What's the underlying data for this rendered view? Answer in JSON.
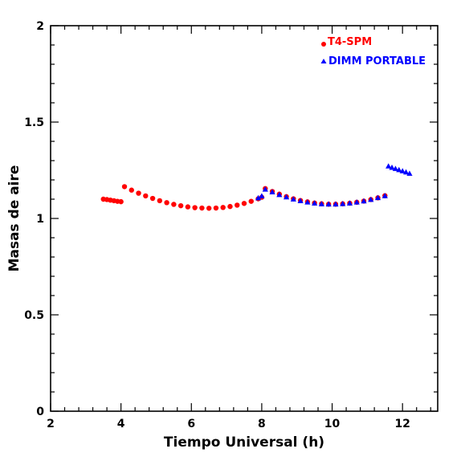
{
  "chart_data": {
    "type": "scatter",
    "xlabel": "Tiempo Universal (h)",
    "ylabel": "Masas de aire",
    "xlim": [
      2,
      13
    ],
    "ylim": [
      0,
      2
    ],
    "x_ticks": [
      2,
      4,
      6,
      8,
      10,
      12
    ],
    "x_tick_labels": [
      "2",
      "4",
      "6",
      "8",
      "10",
      "12"
    ],
    "y_ticks": [
      0,
      0.5,
      1,
      1.5,
      2
    ],
    "y_tick_labels": [
      "0",
      "0.5",
      "1",
      "1.5",
      "2"
    ],
    "grid": false,
    "legend_position": "top-right",
    "series": [
      {
        "name": "T4-SPM",
        "marker": "circle",
        "color": "#ff0000",
        "points": [
          [
            3.5,
            1.1
          ],
          [
            3.6,
            1.098
          ],
          [
            3.7,
            1.095
          ],
          [
            3.8,
            1.092
          ],
          [
            3.9,
            1.089
          ],
          [
            4.0,
            1.087
          ],
          [
            4.1,
            1.165
          ],
          [
            4.3,
            1.147
          ],
          [
            4.5,
            1.131
          ],
          [
            4.7,
            1.117
          ],
          [
            4.9,
            1.104
          ],
          [
            5.1,
            1.092
          ],
          [
            5.3,
            1.082
          ],
          [
            5.5,
            1.073
          ],
          [
            5.7,
            1.066
          ],
          [
            5.9,
            1.06
          ],
          [
            6.1,
            1.056
          ],
          [
            6.3,
            1.054
          ],
          [
            6.5,
            1.053
          ],
          [
            6.7,
            1.054
          ],
          [
            6.9,
            1.057
          ],
          [
            7.1,
            1.062
          ],
          [
            7.3,
            1.069
          ],
          [
            7.5,
            1.078
          ],
          [
            7.7,
            1.089
          ],
          [
            7.9,
            1.102
          ],
          [
            8.0,
            1.11
          ],
          [
            8.1,
            1.155
          ],
          [
            8.3,
            1.14
          ],
          [
            8.5,
            1.126
          ],
          [
            8.7,
            1.113
          ],
          [
            8.9,
            1.102
          ],
          [
            9.1,
            1.093
          ],
          [
            9.3,
            1.086
          ],
          [
            9.5,
            1.08
          ],
          [
            9.7,
            1.076
          ],
          [
            9.9,
            1.074
          ],
          [
            10.1,
            1.074
          ],
          [
            10.3,
            1.076
          ],
          [
            10.5,
            1.079
          ],
          [
            10.7,
            1.084
          ],
          [
            10.9,
            1.09
          ],
          [
            11.1,
            1.098
          ],
          [
            11.3,
            1.107
          ],
          [
            11.5,
            1.118
          ]
        ]
      },
      {
        "name": "DIMM PORTABLE",
        "marker": "triangle",
        "color": "#0000ff",
        "points": [
          [
            7.9,
            1.105
          ],
          [
            8.0,
            1.115
          ],
          [
            8.1,
            1.15
          ],
          [
            8.3,
            1.136
          ],
          [
            8.5,
            1.122
          ],
          [
            8.7,
            1.11
          ],
          [
            8.9,
            1.099
          ],
          [
            9.1,
            1.09
          ],
          [
            9.3,
            1.083
          ],
          [
            9.5,
            1.078
          ],
          [
            9.7,
            1.074
          ],
          [
            9.9,
            1.073
          ],
          [
            10.1,
            1.073
          ],
          [
            10.3,
            1.075
          ],
          [
            10.5,
            1.078
          ],
          [
            10.7,
            1.083
          ],
          [
            10.9,
            1.089
          ],
          [
            11.1,
            1.097
          ],
          [
            11.3,
            1.106
          ],
          [
            11.5,
            1.116
          ],
          [
            11.6,
            1.27
          ],
          [
            11.7,
            1.263
          ],
          [
            11.8,
            1.257
          ],
          [
            11.9,
            1.251
          ],
          [
            12.0,
            1.245
          ],
          [
            12.1,
            1.239
          ],
          [
            12.2,
            1.232
          ]
        ]
      }
    ]
  }
}
